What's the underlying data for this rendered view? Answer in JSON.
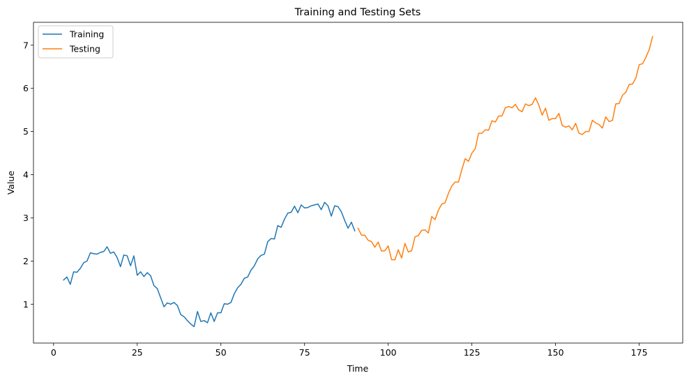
{
  "chart_data": {
    "type": "line",
    "title": "Training and Testing Sets",
    "xlabel": "Time",
    "ylabel": "Value",
    "xlim": [
      -6,
      188
    ],
    "ylim": [
      0.1,
      7.53
    ],
    "x_ticks": [
      0,
      25,
      50,
      75,
      100,
      125,
      150,
      175
    ],
    "y_ticks": [
      1,
      2,
      3,
      4,
      5,
      6,
      7
    ],
    "grid": false,
    "legend": "top-left",
    "series": [
      {
        "name": "Training",
        "color": "#1f77b4",
        "x_start": 3,
        "values": [
          1.56,
          1.63,
          1.46,
          1.75,
          1.74,
          1.83,
          1.96,
          2.0,
          2.19,
          2.17,
          2.16,
          2.2,
          2.22,
          2.33,
          2.18,
          2.21,
          2.08,
          1.87,
          2.14,
          2.12,
          1.89,
          2.12,
          1.67,
          1.75,
          1.64,
          1.73,
          1.66,
          1.43,
          1.36,
          1.15,
          0.94,
          1.03,
          1.0,
          1.04,
          0.97,
          0.76,
          0.71,
          0.62,
          0.54,
          0.48,
          0.83,
          0.6,
          0.62,
          0.57,
          0.8,
          0.6,
          0.8,
          0.8,
          1.01,
          1.0,
          1.04,
          1.24,
          1.38,
          1.46,
          1.6,
          1.63,
          1.79,
          1.89,
          2.05,
          2.13,
          2.16,
          2.45,
          2.52,
          2.51,
          2.82,
          2.78,
          2.97,
          3.11,
          3.13,
          3.27,
          3.12,
          3.3,
          3.23,
          3.24,
          3.28,
          3.3,
          3.32,
          3.19,
          3.36,
          3.28,
          3.04,
          3.28,
          3.26,
          3.14,
          2.94,
          2.76,
          2.9,
          2.7
        ]
      },
      {
        "name": "Testing",
        "color": "#ff7f0e",
        "x_start": 91,
        "values": [
          2.76,
          2.6,
          2.6,
          2.48,
          2.45,
          2.32,
          2.44,
          2.23,
          2.24,
          2.35,
          2.03,
          2.03,
          2.26,
          2.07,
          2.41,
          2.21,
          2.24,
          2.56,
          2.59,
          2.71,
          2.72,
          2.65,
          3.03,
          2.96,
          3.18,
          3.32,
          3.35,
          3.57,
          3.74,
          3.83,
          3.83,
          4.12,
          4.37,
          4.31,
          4.5,
          4.6,
          4.96,
          4.96,
          5.04,
          5.03,
          5.25,
          5.22,
          5.36,
          5.36,
          5.55,
          5.58,
          5.55,
          5.63,
          5.5,
          5.46,
          5.64,
          5.6,
          5.63,
          5.78,
          5.61,
          5.38,
          5.54,
          5.26,
          5.3,
          5.3,
          5.42,
          5.14,
          5.1,
          5.13,
          5.04,
          5.19,
          4.96,
          4.93,
          5.0,
          5.0,
          5.26,
          5.2,
          5.16,
          5.08,
          5.34,
          5.23,
          5.26,
          5.64,
          5.65,
          5.84,
          5.91,
          6.09,
          6.1,
          6.24,
          6.55,
          6.57,
          6.72,
          6.9,
          7.2
        ]
      }
    ]
  }
}
